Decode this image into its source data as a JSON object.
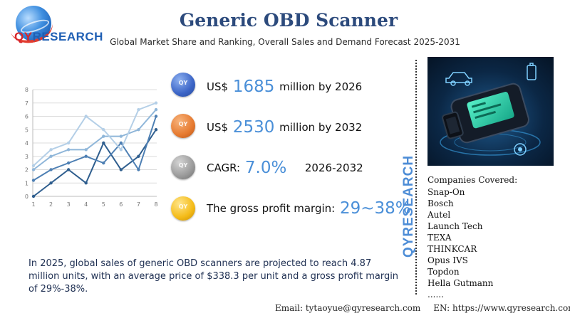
{
  "logo": {
    "part1": "QY",
    "part2": "RESEARCH"
  },
  "header": {
    "title": "Generic OBD Scanner",
    "subtitle": "Global Market Share and Ranking, Overall Sales and Demand Forecast 2025-2031"
  },
  "stats": [
    {
      "prefix": "US$",
      "value": "1685",
      "suffix": "million by 2026",
      "color": "#3b64c6"
    },
    {
      "prefix": "US$",
      "value": "2530",
      "suffix": "million by 2032",
      "color": "#e67a30"
    },
    {
      "prefix": "CAGR:",
      "value": "7.0%",
      "suffix": "2026-2032",
      "color": "#9a9a9a"
    },
    {
      "prefix": "The gross profit margin:",
      "value": "29~38%",
      "suffix": "",
      "color": "#f4bb18"
    }
  ],
  "summary": "In 2025, global sales of generic OBD scanners are projected to reach 4.87 million units, with an average price of $338.3 per unit and a gross profit margin of 29%-38%.",
  "brand_vertical": "QYRESEARCH",
  "companies": {
    "title": "Companies Covered:",
    "list": [
      "Snap-On",
      "Bosch",
      "Autel",
      "Launch Tech",
      "TEXA",
      "THINKCAR",
      "Opus IVS",
      "Topdon",
      "Hella Gutmann",
      "......"
    ]
  },
  "footer": {
    "email": "Email: tytaoyue@qyresearch.com",
    "web": "EN: https://www.qyresearch.com"
  },
  "chart_data": {
    "type": "line",
    "x": [
      1,
      2,
      3,
      4,
      5,
      6,
      7,
      8
    ],
    "ylim": [
      0,
      8
    ],
    "yticks": [
      0,
      1,
      2,
      3,
      4,
      5,
      6,
      7,
      8
    ],
    "series": [
      {
        "values": [
          0,
          1,
          2,
          1,
          4,
          2,
          3,
          5
        ],
        "color": "#2f5e8e"
      },
      {
        "values": [
          1.2,
          2,
          2.5,
          3,
          2.5,
          4,
          2,
          6
        ],
        "color": "#4d7fb3"
      },
      {
        "values": [
          2,
          3,
          3.5,
          3.5,
          4.5,
          4.5,
          5,
          6.5
        ],
        "color": "#8fb6d9"
      },
      {
        "values": [
          2.3,
          3.5,
          4,
          6,
          5,
          3.5,
          6.5,
          7
        ],
        "color": "#b4cfe7"
      }
    ]
  }
}
